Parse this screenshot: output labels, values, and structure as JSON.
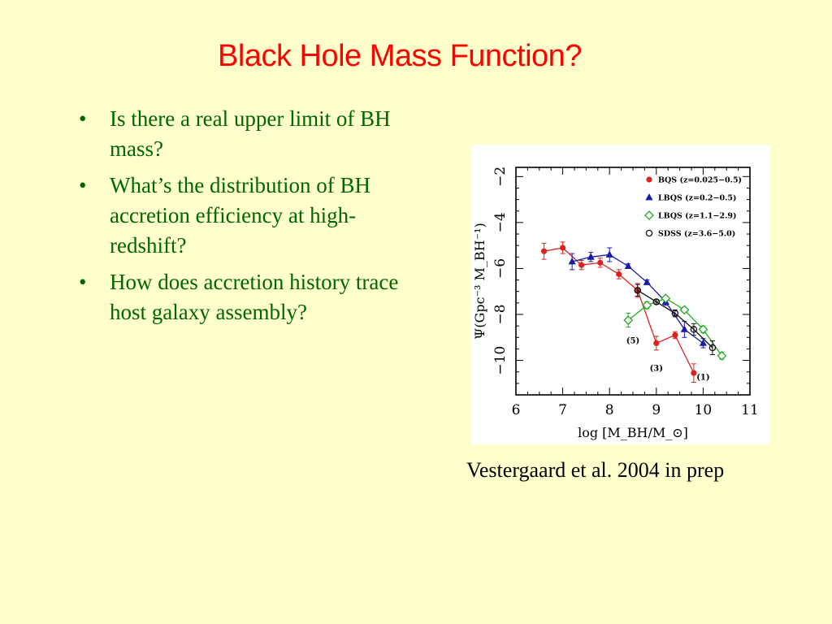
{
  "slide": {
    "title": "Black Hole Mass Function?",
    "bullets": [
      "Is there a real upper limit of BH mass?",
      "What’s the distribution of BH accretion efficiency at high-redshift?",
      "How does accretion history trace host galaxy assembly?"
    ],
    "caption": "Vestergaard et al. 2004 in prep"
  },
  "colors": {
    "background": "#ffffcc",
    "title": "#ff0000",
    "bullet_text": "#006600",
    "bqs": "#dd2222",
    "lbqs_low": "#1a1aaa",
    "lbqs_high": "#22aa22",
    "sdss": "#111111"
  },
  "chart_data": {
    "type": "scatter",
    "xlabel": "log [M_BH/M_⊙]",
    "ylabel": "Ψ(Gpc⁻³ M_BH⁻¹)",
    "xlim": [
      6,
      11
    ],
    "ylim": [
      -11.5,
      -1.6
    ],
    "xticks": [
      "6",
      "7",
      "8",
      "9",
      "10",
      "11"
    ],
    "yticks": [
      "−2",
      "−4",
      "−6",
      "−8",
      "−10"
    ],
    "ytick_values": [
      -2,
      -4,
      -6,
      -8,
      -10
    ],
    "xtick_values": [
      6,
      7,
      8,
      9,
      10,
      11
    ],
    "legend": {
      "placement": "top-right",
      "entries": [
        {
          "label": "BQS  (z=0.025−0.5)",
          "marker": "circle-filled",
          "color": "#dd2222"
        },
        {
          "label": "LBQS  (z=0.2−0.5)",
          "marker": "triangle-filled",
          "color": "#1a1aaa"
        },
        {
          "label": "LBQS  (z=1.1−2.9)",
          "marker": "diamond-open",
          "color": "#22aa22"
        },
        {
          "label": "SDSS  (z=3.6−5.0)",
          "marker": "circle-open",
          "color": "#111111"
        }
      ]
    },
    "annotations": [
      {
        "text": "(5)",
        "x": 8.5,
        "y": -9.25
      },
      {
        "text": "(3)",
        "x": 9.0,
        "y": -10.45
      },
      {
        "text": "(1)",
        "x": 10.0,
        "y": -10.85
      }
    ],
    "series": [
      {
        "name": "BQS  (z=0.025−0.5)",
        "marker": "circle-filled",
        "color": "#dd2222",
        "points": [
          {
            "x": 6.6,
            "y": -5.25,
            "err": 0.35
          },
          {
            "x": 7.0,
            "y": -5.1,
            "err": 0.25
          },
          {
            "x": 7.4,
            "y": -5.85,
            "err": 0.2
          },
          {
            "x": 7.8,
            "y": -5.75,
            "err": 0.2
          },
          {
            "x": 8.2,
            "y": -6.25,
            "err": 0.2
          },
          {
            "x": 8.6,
            "y": -6.95,
            "err": 0.3
          },
          {
            "x": 9.0,
            "y": -9.25,
            "err": 0.3
          },
          {
            "x": 9.4,
            "y": -8.9,
            "err": 0.15
          },
          {
            "x": 9.8,
            "y": -10.55,
            "err": 0.4
          }
        ]
      },
      {
        "name": "LBQS  (z=0.2−0.5)",
        "marker": "triangle-filled",
        "color": "#1a1aaa",
        "points": [
          {
            "x": 7.2,
            "y": -5.7,
            "err": 0.35
          },
          {
            "x": 7.6,
            "y": -5.5,
            "err": 0.2
          },
          {
            "x": 8.0,
            "y": -5.4,
            "err": 0.3
          },
          {
            "x": 8.4,
            "y": -5.9,
            "err": 0.1
          },
          {
            "x": 8.8,
            "y": -6.6,
            "err": 0.1
          },
          {
            "x": 9.2,
            "y": -7.45,
            "err": 0.15
          },
          {
            "x": 9.6,
            "y": -8.65,
            "err": 0.35
          },
          {
            "x": 10.0,
            "y": -9.25,
            "err": 0.2
          }
        ]
      },
      {
        "name": "LBQS  (z=1.1−2.9)",
        "marker": "diamond-open",
        "color": "#22aa22",
        "points": [
          {
            "x": 8.4,
            "y": -8.25,
            "err": 0.3
          },
          {
            "x": 8.8,
            "y": -7.6,
            "err": 0.15
          },
          {
            "x": 9.2,
            "y": -7.3,
            "err": 0.1
          },
          {
            "x": 9.6,
            "y": -7.8,
            "err": 0.1
          },
          {
            "x": 10.0,
            "y": -8.65,
            "err": 0.15
          },
          {
            "x": 10.4,
            "y": -9.8,
            "err": 0.15
          }
        ]
      },
      {
        "name": "SDSS  (z=3.6−5.0)",
        "marker": "circle-open",
        "color": "#111111",
        "points": [
          {
            "x": 8.6,
            "y": -6.95,
            "err": 0.25
          },
          {
            "x": 9.0,
            "y": -7.45,
            "err": 0.1
          },
          {
            "x": 9.4,
            "y": -7.95,
            "err": 0.15
          },
          {
            "x": 9.8,
            "y": -8.65,
            "err": 0.25
          },
          {
            "x": 10.2,
            "y": -9.45,
            "err": 0.3
          }
        ]
      }
    ]
  }
}
